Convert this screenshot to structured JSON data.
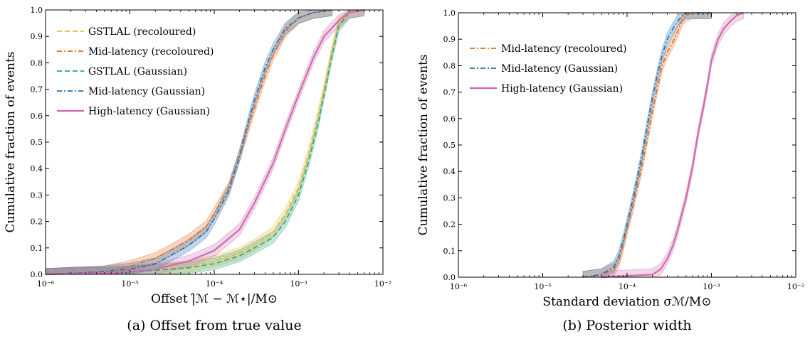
{
  "chart_data": [
    {
      "type": "line",
      "caption": "(a) Offset from true value",
      "xlabel": "Offset |̂ℳ − ℳ⋆|/M⊙",
      "ylabel": "Cumulative fraction of events",
      "xscale": "log",
      "xlim": [
        1e-06,
        0.01
      ],
      "ylim": [
        0,
        1
      ],
      "x_tick_labels": [
        "10⁻⁶",
        "10⁻⁵",
        "10⁻⁴",
        "10⁻³",
        "10⁻²"
      ],
      "y_tick_labels": [
        "0.0",
        "0.1",
        "0.2",
        "0.3",
        "0.4",
        "0.5",
        "0.6",
        "0.7",
        "0.8",
        "0.9",
        "1.0"
      ],
      "legend_position": "top-left",
      "series": [
        {
          "name": "GSTLAL (recoloured)",
          "color": "#f2b73a",
          "dash": "dashed",
          "x": [
            1e-06,
            5e-06,
            1e-05,
            2e-05,
            5e-05,
            0.0001,
            0.0002,
            0.0003,
            0.0005,
            0.0007,
            0.001,
            0.0013,
            0.0017,
            0.002,
            0.0025,
            0.003,
            0.004,
            0.006
          ],
          "y": [
            0.0,
            0.005,
            0.01,
            0.02,
            0.03,
            0.05,
            0.08,
            0.11,
            0.16,
            0.23,
            0.33,
            0.45,
            0.6,
            0.7,
            0.85,
            0.95,
            0.99,
            1.0
          ]
        },
        {
          "name": "Mid-latency (recoloured)",
          "color": "#e46a1f",
          "dash": "dashdot",
          "x": [
            1e-06,
            5e-06,
            1e-05,
            2e-05,
            3e-05,
            5e-05,
            8e-05,
            0.0001,
            0.00015,
            0.0002,
            0.00025,
            0.0003,
            0.0004,
            0.0005,
            0.0007,
            0.001,
            0.0015,
            0.0025
          ],
          "y": [
            0.0,
            0.01,
            0.03,
            0.06,
            0.09,
            0.13,
            0.18,
            0.23,
            0.33,
            0.45,
            0.55,
            0.63,
            0.75,
            0.83,
            0.92,
            0.97,
            0.99,
            1.0
          ]
        },
        {
          "name": "GSTLAL (Gaussian)",
          "color": "#2aa87c",
          "dash": "dashed",
          "x": [
            1e-06,
            5e-06,
            1e-05,
            2e-05,
            5e-05,
            0.0001,
            0.0002,
            0.0003,
            0.0005,
            0.0007,
            0.001,
            0.0013,
            0.0017,
            0.002,
            0.0025,
            0.003,
            0.004,
            0.006
          ],
          "y": [
            0.0,
            0.005,
            0.008,
            0.015,
            0.025,
            0.04,
            0.07,
            0.1,
            0.14,
            0.2,
            0.3,
            0.42,
            0.57,
            0.68,
            0.83,
            0.94,
            0.99,
            1.0
          ]
        },
        {
          "name": "Mid-latency (Gaussian)",
          "color": "#1f6fb4",
          "dash": "dashdot",
          "x": [
            1e-06,
            5e-06,
            1e-05,
            2e-05,
            3e-05,
            5e-05,
            8e-05,
            0.0001,
            0.00015,
            0.0002,
            0.00025,
            0.0003,
            0.0004,
            0.0005,
            0.0007,
            0.001,
            0.0015,
            0.0025
          ],
          "y": [
            0.0,
            0.01,
            0.02,
            0.04,
            0.07,
            0.11,
            0.16,
            0.21,
            0.32,
            0.45,
            0.57,
            0.66,
            0.78,
            0.85,
            0.93,
            0.97,
            0.99,
            1.0
          ]
        },
        {
          "name": "High-latency (Gaussian)",
          "color": "#cf6cb0",
          "dash": "solid",
          "x": [
            1e-06,
            5e-06,
            1e-05,
            2e-05,
            5e-05,
            0.0001,
            0.0002,
            0.0003,
            0.0005,
            0.0007,
            0.001,
            0.0015,
            0.002,
            0.003,
            0.004,
            0.006
          ],
          "y": [
            0.0,
            0.005,
            0.01,
            0.02,
            0.05,
            0.09,
            0.17,
            0.27,
            0.42,
            0.55,
            0.68,
            0.82,
            0.9,
            0.96,
            0.99,
            1.0
          ]
        }
      ]
    },
    {
      "type": "line",
      "caption": "(b) Posterior width",
      "xlabel": "Standard deviation σℳ/M⊙",
      "ylabel": "Cumulative fraction of events",
      "xscale": "log",
      "xlim": [
        1e-06,
        0.01
      ],
      "ylim": [
        0,
        1
      ],
      "x_tick_labels": [
        "10⁻⁶",
        "10⁻⁵",
        "10⁻⁴",
        "10⁻³",
        "10⁻²"
      ],
      "y_tick_labels": [
        "0.0",
        "0.1",
        "0.2",
        "0.3",
        "0.4",
        "0.5",
        "0.6",
        "0.7",
        "0.8",
        "0.9",
        "1.0"
      ],
      "legend_position": "top-left",
      "series": [
        {
          "name": "Mid-latency (recoloured)",
          "color": "#e46a1f",
          "dash": "dashdot",
          "x": [
            3e-05,
            5e-05,
            7e-05,
            8e-05,
            9e-05,
            0.0001,
            0.00012,
            0.00015,
            0.00018,
            0.0002,
            0.00023,
            0.00026,
            0.0003,
            0.00035,
            0.0004,
            0.00045,
            0.0005,
            0.0006,
            0.001
          ],
          "y": [
            0.0,
            0.01,
            0.03,
            0.06,
            0.12,
            0.18,
            0.28,
            0.42,
            0.55,
            0.63,
            0.72,
            0.8,
            0.85,
            0.89,
            0.93,
            0.97,
            0.99,
            1.0,
            1.0
          ]
        },
        {
          "name": "Mid-latency (Gaussian)",
          "color": "#1f6fb4",
          "dash": "dashdot",
          "x": [
            3e-05,
            5e-05,
            7e-05,
            8e-05,
            9e-05,
            0.0001,
            0.00012,
            0.00015,
            0.00018,
            0.0002,
            0.00023,
            0.00026,
            0.0003,
            0.00035,
            0.0004,
            0.00045,
            0.0005,
            0.0006,
            0.001
          ],
          "y": [
            0.0,
            0.01,
            0.04,
            0.08,
            0.14,
            0.2,
            0.31,
            0.46,
            0.6,
            0.68,
            0.77,
            0.84,
            0.9,
            0.94,
            0.97,
            0.99,
            1.0,
            1.0,
            1.0
          ]
        },
        {
          "name": "High-latency (Gaussian)",
          "color": "#cf6cb0",
          "dash": "solid",
          "x": [
            5e-05,
            0.0001,
            0.0002,
            0.00025,
            0.0003,
            0.00035,
            0.0004,
            0.0005,
            0.0006,
            0.0007,
            0.0008,
            0.0009,
            0.001,
            0.0012,
            0.0014,
            0.0017,
            0.002,
            0.0024
          ],
          "y": [
            0.0,
            0.005,
            0.01,
            0.03,
            0.07,
            0.12,
            0.18,
            0.3,
            0.42,
            0.55,
            0.64,
            0.73,
            0.82,
            0.9,
            0.94,
            0.97,
            0.99,
            1.0
          ]
        }
      ]
    }
  ]
}
